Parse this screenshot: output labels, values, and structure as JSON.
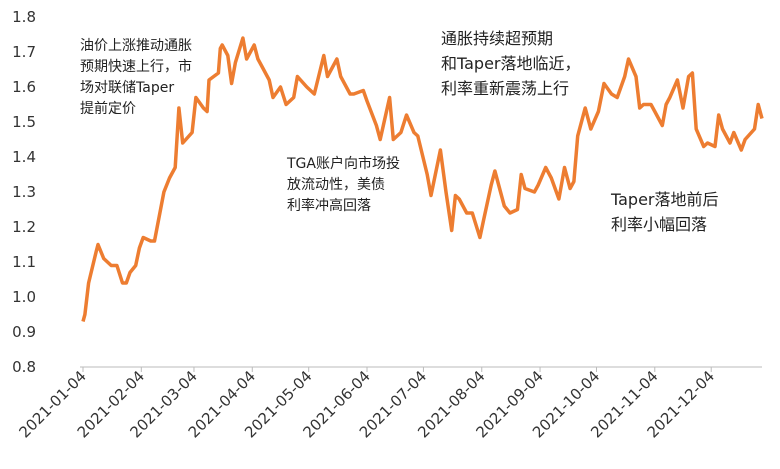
{
  "chart_data": {
    "type": "line",
    "x": [
      "2021-01-04",
      "2021-01-05",
      "2021-01-07",
      "2021-01-11",
      "2021-01-12",
      "2021-01-15",
      "2021-01-19",
      "2021-01-22",
      "2021-01-25",
      "2021-01-27",
      "2021-01-29",
      "2021-02-01",
      "2021-02-03",
      "2021-02-05",
      "2021-02-09",
      "2021-02-11",
      "2021-02-16",
      "2021-02-19",
      "2021-02-22",
      "2021-02-24",
      "2021-02-26",
      "2021-03-03",
      "2021-03-05",
      "2021-03-09",
      "2021-03-11",
      "2021-03-12",
      "2021-03-17",
      "2021-03-18",
      "2021-03-19",
      "2021-03-22",
      "2021-03-24",
      "2021-03-26",
      "2021-03-30",
      "2021-04-01",
      "2021-04-05",
      "2021-04-07",
      "2021-04-09",
      "2021-04-13",
      "2021-04-15",
      "2021-04-19",
      "2021-04-22",
      "2021-04-26",
      "2021-04-28",
      "2021-05-03",
      "2021-05-07",
      "2021-05-12",
      "2021-05-14",
      "2021-05-19",
      "2021-05-21",
      "2021-05-26",
      "2021-05-28",
      "2021-06-02",
      "2021-06-04",
      "2021-06-09",
      "2021-06-11",
      "2021-06-16",
      "2021-06-18",
      "2021-06-22",
      "2021-06-25",
      "2021-06-29",
      "2021-07-01",
      "2021-07-06",
      "2021-07-08",
      "2021-07-13",
      "2021-07-16",
      "2021-07-19",
      "2021-07-21",
      "2021-07-23",
      "2021-07-27",
      "2021-07-30",
      "2021-08-03",
      "2021-08-05",
      "2021-08-09",
      "2021-08-11",
      "2021-08-16",
      "2021-08-19",
      "2021-08-23",
      "2021-08-25",
      "2021-08-27",
      "2021-09-01",
      "2021-09-03",
      "2021-09-07",
      "2021-09-10",
      "2021-09-14",
      "2021-09-17",
      "2021-09-20",
      "2021-09-22",
      "2021-09-24",
      "2021-09-28",
      "2021-10-01",
      "2021-10-05",
      "2021-10-08",
      "2021-10-12",
      "2021-10-15",
      "2021-10-19",
      "2021-10-21",
      "2021-10-25",
      "2021-10-27",
      "2021-10-29",
      "2021-11-02",
      "2021-11-04",
      "2021-11-08",
      "2021-11-10",
      "2021-11-12",
      "2021-11-16",
      "2021-11-19",
      "2021-11-22",
      "2021-11-24",
      "2021-11-26",
      "2021-11-30",
      "2021-12-02",
      "2021-12-06",
      "2021-12-08",
      "2021-12-10",
      "2021-12-14",
      "2021-12-16",
      "2021-12-20",
      "2021-12-22",
      "2021-12-27",
      "2021-12-29",
      "2021-12-31"
    ],
    "values": [
      0.93,
      0.95,
      1.04,
      1.13,
      1.15,
      1.11,
      1.09,
      1.09,
      1.04,
      1.04,
      1.07,
      1.09,
      1.14,
      1.17,
      1.16,
      1.16,
      1.3,
      1.34,
      1.37,
      1.54,
      1.44,
      1.47,
      1.57,
      1.54,
      1.53,
      1.62,
      1.64,
      1.71,
      1.72,
      1.69,
      1.61,
      1.67,
      1.74,
      1.68,
      1.72,
      1.68,
      1.66,
      1.62,
      1.57,
      1.6,
      1.55,
      1.57,
      1.63,
      1.6,
      1.58,
      1.69,
      1.63,
      1.68,
      1.63,
      1.58,
      1.58,
      1.59,
      1.56,
      1.49,
      1.45,
      1.57,
      1.45,
      1.47,
      1.52,
      1.47,
      1.46,
      1.35,
      1.29,
      1.42,
      1.3,
      1.19,
      1.29,
      1.28,
      1.24,
      1.24,
      1.17,
      1.22,
      1.32,
      1.36,
      1.26,
      1.24,
      1.25,
      1.35,
      1.31,
      1.3,
      1.32,
      1.37,
      1.34,
      1.28,
      1.37,
      1.31,
      1.33,
      1.46,
      1.54,
      1.48,
      1.53,
      1.61,
      1.58,
      1.57,
      1.63,
      1.68,
      1.63,
      1.54,
      1.55,
      1.55,
      1.53,
      1.49,
      1.55,
      1.57,
      1.62,
      1.54,
      1.63,
      1.64,
      1.48,
      1.43,
      1.44,
      1.43,
      1.52,
      1.48,
      1.44,
      1.47,
      1.42,
      1.45,
      1.48,
      1.55,
      1.51
    ],
    "color": "#ed7d31",
    "xlim": [
      "2021-01-04",
      "2021-12-31"
    ],
    "xticks": [
      "2021-01-04",
      "2021-02-04",
      "2021-03-04",
      "2021-04-04",
      "2021-05-04",
      "2021-06-04",
      "2021-07-04",
      "2021-08-04",
      "2021-09-04",
      "2021-10-04",
      "2021-11-04",
      "2021-12-04"
    ],
    "ylim": [
      0.8,
      1.8
    ],
    "yticks": [
      0.8,
      0.9,
      {
        "value": 1,
        "label": "1.0"
      },
      1.1,
      1.2,
      1.3,
      1.4,
      1.5,
      1.6,
      1.7,
      1.8
    ],
    "annotations": [
      [
        "油价上涨推动通胀",
        "预期快速上行，市",
        "场对联储Taper",
        "提前定价"
      ],
      [
        "TGA账户向市场投",
        "放流动性，美债",
        "利率冲高回落"
      ],
      [
        "通胀持续超预期",
        "和Taper落地临近，",
        "利率重新震荡上行"
      ],
      [
        "Taper落地前后",
        "利率小幅回落"
      ]
    ]
  }
}
